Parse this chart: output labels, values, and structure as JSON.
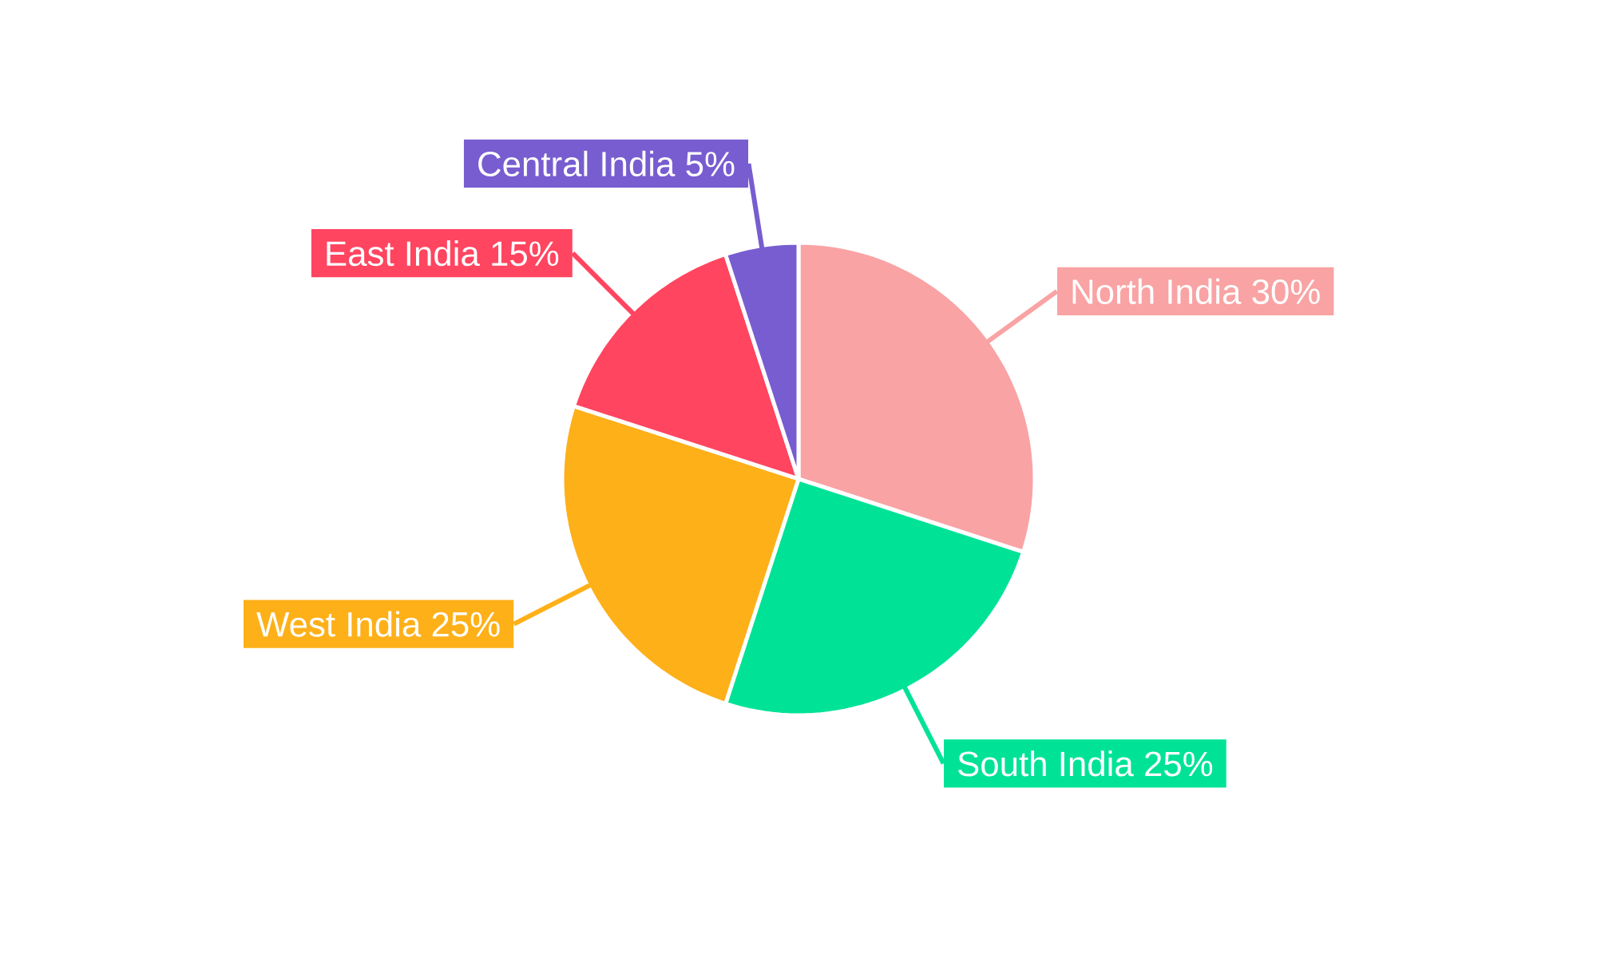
{
  "chart_data": {
    "type": "pie",
    "categories": [
      "North India",
      "South India",
      "West India",
      "East India",
      "Central India"
    ],
    "values": [
      30,
      25,
      25,
      15,
      5
    ],
    "value_labels": [
      "30%",
      "25%",
      "25%",
      "15%",
      "5%"
    ],
    "colors": [
      "#f9a3a4",
      "#00e396",
      "#feb019",
      "#ff4560",
      "#775dd0"
    ]
  }
}
